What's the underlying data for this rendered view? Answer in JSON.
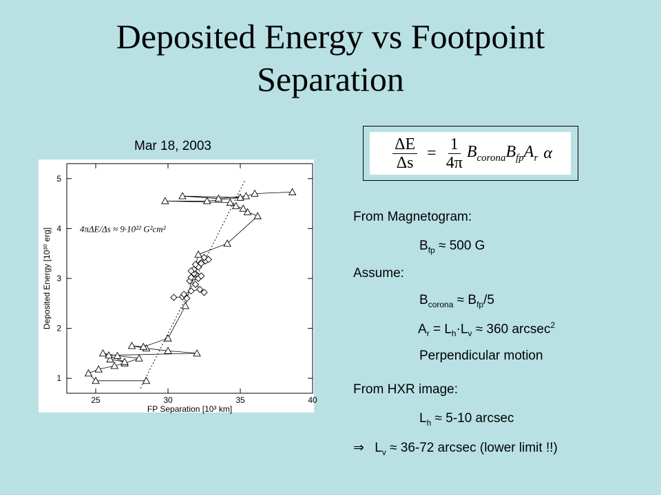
{
  "slide": {
    "title_line1": "Deposited Energy vs Footpoint",
    "title_line2": "Separation",
    "date": "Mar 18, 2003"
  },
  "equation": {
    "lhs_num": "ΔE",
    "lhs_den": "Δs",
    "equals": "=",
    "rhs_num": "1",
    "rhs_den": "4π",
    "b1": "B",
    "b1_sub": "corona",
    "b2": "B",
    "b2_sub": "fp",
    "a": "A",
    "a_sub": "r",
    "alpha": "α"
  },
  "notes": {
    "magnetogram_header": "From Magnetogram:",
    "bfp_sym": "B",
    "bfp_sub": "fp",
    "bfp_value": "≈ 500 G",
    "assume_header": "Assume:",
    "bcorona_sym": "B",
    "bcorona_sub": "corona",
    "bcorona_mid": "≈ B",
    "bcorona_sub2": "fp",
    "bcorona_end": "/5",
    "ar_sym": "A",
    "ar_sub": "r",
    "ar_mid1": "= L",
    "ar_sub2": "h",
    "ar_mid2": "·L",
    "ar_sub3": "v",
    "ar_value": "≈ 360 arcsec",
    "ar_sup": "2",
    "perp": "Perpendicular motion",
    "hxr_header": "From HXR image:",
    "lh_sym": "L",
    "lh_sub": "h",
    "lh_value": "≈ 5-10 arcsec",
    "lv_arrow": "⇒",
    "lv_sym": "L",
    "lv_sub": "v",
    "lv_value": "≈ 36-72 arcsec  (lower limit !!)"
  },
  "chart_data": {
    "type": "scatter",
    "xlabel": "FP Separation  [10³  km]",
    "ylabel": "Deposited Energy  [10³⁰  erg]",
    "annotation": "4πΔE/Δs ≈ 9·10²² G²cm²",
    "xlim": [
      23,
      40
    ],
    "ylim": [
      0.7,
      5.3
    ],
    "xticks": [
      25,
      30,
      35,
      40
    ],
    "yticks": [
      1,
      2,
      3,
      4,
      5
    ],
    "fit_line": [
      [
        28.1,
        0.8
      ],
      [
        35.3,
        4.95
      ]
    ],
    "triangle_series": {
      "marker": "triangle",
      "points": [
        [
          28.5,
          0.95
        ],
        [
          25.0,
          0.95
        ],
        [
          24.5,
          1.1
        ],
        [
          25.2,
          1.18
        ],
        [
          26.3,
          1.25
        ],
        [
          27.0,
          1.3
        ],
        [
          28.0,
          1.4
        ],
        [
          26.5,
          1.45
        ],
        [
          25.5,
          1.5
        ],
        [
          27.0,
          1.33
        ],
        [
          26.0,
          1.38
        ],
        [
          25.9,
          1.46
        ],
        [
          32.0,
          1.5
        ],
        [
          30.0,
          1.55
        ],
        [
          28.5,
          1.6
        ],
        [
          27.5,
          1.65
        ],
        [
          28.3,
          1.63
        ],
        [
          30.0,
          1.8
        ],
        [
          31.2,
          2.45
        ],
        [
          32.1,
          3.48
        ],
        [
          34.1,
          3.7
        ],
        [
          36.2,
          4.25
        ],
        [
          35.5,
          4.33
        ],
        [
          35.2,
          4.4
        ],
        [
          34.7,
          4.45
        ],
        [
          34.3,
          4.52
        ],
        [
          29.8,
          4.55
        ],
        [
          32.7,
          4.55
        ],
        [
          35.0,
          4.62
        ],
        [
          31.0,
          4.65
        ],
        [
          33.5,
          4.6
        ],
        [
          35.4,
          4.65
        ],
        [
          36.0,
          4.7
        ],
        [
          38.6,
          4.73
        ]
      ]
    },
    "diamond_series": {
      "marker": "diamond",
      "points": [
        [
          30.4,
          2.62
        ],
        [
          31.0,
          2.63
        ],
        [
          31.3,
          2.6
        ],
        [
          31.1,
          2.68
        ],
        [
          31.6,
          2.75
        ],
        [
          32.2,
          2.78
        ],
        [
          32.5,
          2.72
        ],
        [
          31.9,
          2.88
        ],
        [
          31.5,
          2.95
        ],
        [
          32.1,
          3.0
        ],
        [
          31.8,
          3.1
        ],
        [
          31.6,
          3.02
        ],
        [
          32.3,
          3.05
        ],
        [
          31.8,
          3.18
        ],
        [
          32.1,
          3.23
        ],
        [
          32.3,
          3.3
        ],
        [
          32.6,
          3.35
        ],
        [
          32.8,
          3.38
        ],
        [
          32.5,
          3.42
        ],
        [
          31.9,
          3.28
        ],
        [
          31.6,
          3.15
        ]
      ]
    }
  }
}
